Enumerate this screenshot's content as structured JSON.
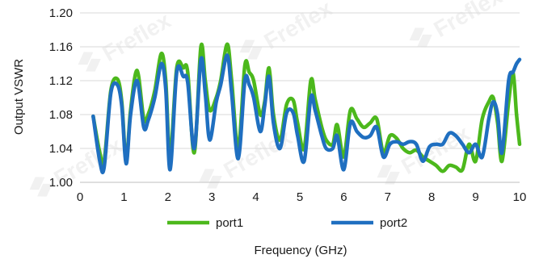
{
  "chart_data": {
    "type": "line",
    "xlabel": "Frequency (GHz)",
    "ylabel": "Output VSWR",
    "xlim": [
      0,
      10
    ],
    "ylim": [
      1.0,
      1.2
    ],
    "xticks": [
      "0",
      "1",
      "2",
      "3",
      "4",
      "5",
      "6",
      "7",
      "8",
      "9",
      "10"
    ],
    "yticks": [
      "1.00",
      "1.04",
      "1.08",
      "1.12",
      "1.16",
      "1.20"
    ],
    "grid": "horizontal",
    "legend_position": "bottom",
    "series": [
      {
        "name": "port1",
        "color": "#4cb81c",
        "points": [
          [
            0.3,
            1.078
          ],
          [
            0.45,
            1.035
          ],
          [
            0.55,
            1.025
          ],
          [
            0.7,
            1.108
          ],
          [
            0.85,
            1.122
          ],
          [
            0.95,
            1.095
          ],
          [
            1.05,
            1.025
          ],
          [
            1.15,
            1.085
          ],
          [
            1.3,
            1.132
          ],
          [
            1.45,
            1.075
          ],
          [
            1.55,
            1.08
          ],
          [
            1.7,
            1.108
          ],
          [
            1.85,
            1.152
          ],
          [
            1.95,
            1.12
          ],
          [
            2.05,
            1.03
          ],
          [
            2.2,
            1.135
          ],
          [
            2.35,
            1.135
          ],
          [
            2.45,
            1.13
          ],
          [
            2.6,
            1.035
          ],
          [
            2.75,
            1.16
          ],
          [
            2.85,
            1.12
          ],
          [
            2.95,
            1.085
          ],
          [
            3.1,
            1.1
          ],
          [
            3.2,
            1.12
          ],
          [
            3.35,
            1.163
          ],
          [
            3.45,
            1.12
          ],
          [
            3.6,
            1.04
          ],
          [
            3.75,
            1.138
          ],
          [
            3.85,
            1.13
          ],
          [
            3.95,
            1.12
          ],
          [
            4.1,
            1.08
          ],
          [
            4.2,
            1.095
          ],
          [
            4.3,
            1.135
          ],
          [
            4.4,
            1.08
          ],
          [
            4.55,
            1.05
          ],
          [
            4.7,
            1.092
          ],
          [
            4.85,
            1.097
          ],
          [
            4.95,
            1.07
          ],
          [
            5.1,
            1.04
          ],
          [
            5.25,
            1.12
          ],
          [
            5.35,
            1.098
          ],
          [
            5.5,
            1.065
          ],
          [
            5.6,
            1.05
          ],
          [
            5.75,
            1.045
          ],
          [
            5.85,
            1.068
          ],
          [
            6.0,
            1.03
          ],
          [
            6.15,
            1.085
          ],
          [
            6.3,
            1.075
          ],
          [
            6.45,
            1.065
          ],
          [
            6.6,
            1.07
          ],
          [
            6.75,
            1.075
          ],
          [
            6.9,
            1.035
          ],
          [
            7.05,
            1.055
          ],
          [
            7.2,
            1.052
          ],
          [
            7.35,
            1.04
          ],
          [
            7.5,
            1.035
          ],
          [
            7.65,
            1.038
          ],
          [
            7.8,
            1.03
          ],
          [
            7.95,
            1.025
          ],
          [
            8.1,
            1.02
          ],
          [
            8.25,
            1.013
          ],
          [
            8.4,
            1.02
          ],
          [
            8.55,
            1.018
          ],
          [
            8.7,
            1.015
          ],
          [
            8.85,
            1.045
          ],
          [
            9.0,
            1.025
          ],
          [
            9.15,
            1.075
          ],
          [
            9.3,
            1.095
          ],
          [
            9.4,
            1.1
          ],
          [
            9.5,
            1.07
          ],
          [
            9.6,
            1.025
          ],
          [
            9.75,
            1.095
          ],
          [
            9.85,
            1.13
          ],
          [
            9.93,
            1.08
          ],
          [
            10.0,
            1.045
          ]
        ]
      },
      {
        "name": "port2",
        "color": "#1f6fc0",
        "points": [
          [
            0.3,
            1.078
          ],
          [
            0.45,
            1.025
          ],
          [
            0.55,
            1.018
          ],
          [
            0.7,
            1.105
          ],
          [
            0.85,
            1.115
          ],
          [
            0.95,
            1.09
          ],
          [
            1.05,
            1.022
          ],
          [
            1.15,
            1.08
          ],
          [
            1.3,
            1.12
          ],
          [
            1.45,
            1.065
          ],
          [
            1.55,
            1.073
          ],
          [
            1.7,
            1.1
          ],
          [
            1.85,
            1.14
          ],
          [
            1.95,
            1.11
          ],
          [
            2.05,
            1.015
          ],
          [
            2.2,
            1.13
          ],
          [
            2.35,
            1.125
          ],
          [
            2.45,
            1.118
          ],
          [
            2.6,
            1.04
          ],
          [
            2.75,
            1.145
          ],
          [
            2.85,
            1.105
          ],
          [
            2.95,
            1.05
          ],
          [
            3.1,
            1.095
          ],
          [
            3.2,
            1.115
          ],
          [
            3.35,
            1.15
          ],
          [
            3.45,
            1.105
          ],
          [
            3.6,
            1.028
          ],
          [
            3.75,
            1.12
          ],
          [
            3.85,
            1.115
          ],
          [
            3.95,
            1.1
          ],
          [
            4.1,
            1.06
          ],
          [
            4.2,
            1.09
          ],
          [
            4.3,
            1.125
          ],
          [
            4.4,
            1.07
          ],
          [
            4.55,
            1.04
          ],
          [
            4.7,
            1.082
          ],
          [
            4.85,
            1.082
          ],
          [
            4.95,
            1.055
          ],
          [
            5.1,
            1.025
          ],
          [
            5.25,
            1.1
          ],
          [
            5.35,
            1.085
          ],
          [
            5.5,
            1.055
          ],
          [
            5.6,
            1.04
          ],
          [
            5.75,
            1.04
          ],
          [
            5.85,
            1.055
          ],
          [
            6.0,
            1.015
          ],
          [
            6.15,
            1.07
          ],
          [
            6.3,
            1.06
          ],
          [
            6.45,
            1.053
          ],
          [
            6.6,
            1.055
          ],
          [
            6.75,
            1.065
          ],
          [
            6.9,
            1.03
          ],
          [
            7.05,
            1.045
          ],
          [
            7.2,
            1.048
          ],
          [
            7.35,
            1.045
          ],
          [
            7.5,
            1.048
          ],
          [
            7.65,
            1.045
          ],
          [
            7.8,
            1.025
          ],
          [
            7.95,
            1.042
          ],
          [
            8.1,
            1.045
          ],
          [
            8.25,
            1.045
          ],
          [
            8.4,
            1.058
          ],
          [
            8.55,
            1.055
          ],
          [
            8.7,
            1.045
          ],
          [
            8.85,
            1.035
          ],
          [
            9.0,
            1.045
          ],
          [
            9.15,
            1.03
          ],
          [
            9.3,
            1.075
          ],
          [
            9.4,
            1.095
          ],
          [
            9.5,
            1.08
          ],
          [
            9.6,
            1.035
          ],
          [
            9.75,
            1.12
          ],
          [
            9.85,
            1.13
          ],
          [
            9.93,
            1.14
          ],
          [
            10.0,
            1.145
          ]
        ]
      }
    ]
  },
  "watermark": {
    "text": "Freflex",
    "logo_color": "#b8b8b8"
  }
}
